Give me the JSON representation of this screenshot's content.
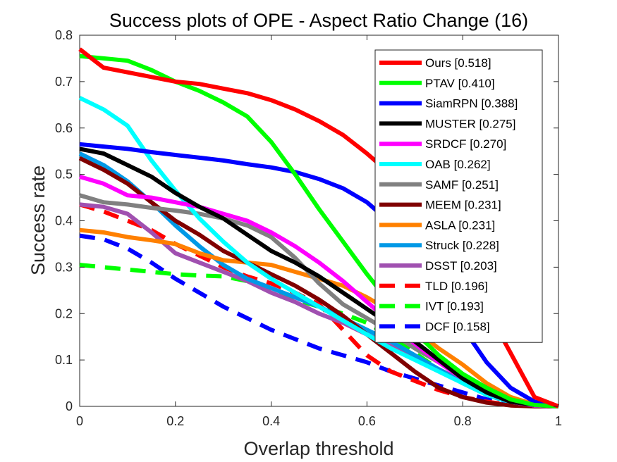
{
  "chart_data": {
    "type": "line",
    "title": "Success plots of OPE - Aspect Ratio Change (16)",
    "xlabel": "Overlap threshold",
    "ylabel": "Success rate",
    "xlim": [
      0,
      1
    ],
    "ylim": [
      0,
      0.8
    ],
    "xticks": [
      "0",
      "0.2",
      "0.4",
      "0.6",
      "0.8",
      "1"
    ],
    "yticks": [
      "0",
      "0.1",
      "0.2",
      "0.3",
      "0.4",
      "0.5",
      "0.6",
      "0.7",
      "0.8"
    ],
    "grid": false,
    "legend_position": "top-right",
    "series": [
      {
        "name": "Ours [0.518]",
        "color": "#ff0000",
        "dashed": false,
        "x": [
          0,
          0.05,
          0.1,
          0.15,
          0.2,
          0.25,
          0.3,
          0.35,
          0.4,
          0.45,
          0.5,
          0.55,
          0.6,
          0.65,
          0.7,
          0.75,
          0.8,
          0.85,
          0.9,
          0.95,
          1
        ],
        "y": [
          0.77,
          0.73,
          0.72,
          0.71,
          0.7,
          0.695,
          0.685,
          0.675,
          0.66,
          0.64,
          0.615,
          0.585,
          0.545,
          0.5,
          0.44,
          0.38,
          0.31,
          0.21,
          0.115,
          0.02,
          0
        ]
      },
      {
        "name": "PTAV [0.410]",
        "color": "#00ff00",
        "dashed": false,
        "x": [
          0,
          0.05,
          0.1,
          0.15,
          0.2,
          0.25,
          0.3,
          0.35,
          0.4,
          0.45,
          0.5,
          0.55,
          0.6,
          0.65,
          0.7,
          0.75,
          0.8,
          0.85,
          0.9,
          0.95,
          1
        ],
        "y": [
          0.755,
          0.75,
          0.745,
          0.725,
          0.7,
          0.68,
          0.655,
          0.625,
          0.57,
          0.5,
          0.425,
          0.355,
          0.285,
          0.22,
          0.16,
          0.11,
          0.07,
          0.04,
          0.015,
          0.003,
          0
        ]
      },
      {
        "name": "SiamRPN [0.388]",
        "color": "#0000ff",
        "dashed": false,
        "x": [
          0,
          0.05,
          0.1,
          0.15,
          0.2,
          0.25,
          0.3,
          0.35,
          0.4,
          0.45,
          0.5,
          0.55,
          0.6,
          0.65,
          0.7,
          0.75,
          0.8,
          0.85,
          0.9,
          0.95,
          1
        ],
        "y": [
          0.565,
          0.56,
          0.555,
          0.548,
          0.542,
          0.536,
          0.53,
          0.522,
          0.515,
          0.505,
          0.49,
          0.47,
          0.44,
          0.395,
          0.34,
          0.265,
          0.17,
          0.095,
          0.04,
          0.01,
          0
        ]
      },
      {
        "name": "MUSTER [0.275]",
        "color": "#000000",
        "dashed": false,
        "x": [
          0,
          0.05,
          0.1,
          0.15,
          0.2,
          0.25,
          0.3,
          0.35,
          0.4,
          0.45,
          0.5,
          0.55,
          0.6,
          0.65,
          0.7,
          0.75,
          0.8,
          0.85,
          0.9,
          0.95,
          1
        ],
        "y": [
          0.555,
          0.545,
          0.52,
          0.495,
          0.46,
          0.43,
          0.405,
          0.37,
          0.335,
          0.31,
          0.28,
          0.245,
          0.21,
          0.175,
          0.14,
          0.1,
          0.06,
          0.03,
          0.01,
          0.003,
          0
        ]
      },
      {
        "name": "SRDCF [0.270]",
        "color": "#ff00ff",
        "dashed": false,
        "x": [
          0,
          0.05,
          0.1,
          0.15,
          0.2,
          0.25,
          0.3,
          0.35,
          0.4,
          0.45,
          0.5,
          0.55,
          0.6,
          0.65,
          0.7,
          0.75,
          0.8,
          0.85,
          0.9,
          0.95,
          1
        ],
        "y": [
          0.495,
          0.48,
          0.455,
          0.45,
          0.44,
          0.43,
          0.415,
          0.4,
          0.375,
          0.345,
          0.31,
          0.27,
          0.225,
          0.18,
          0.135,
          0.095,
          0.06,
          0.03,
          0.01,
          0.002,
          0
        ]
      },
      {
        "name": "OAB [0.262]",
        "color": "#00ffff",
        "dashed": false,
        "x": [
          0,
          0.05,
          0.1,
          0.15,
          0.2,
          0.25,
          0.3,
          0.35,
          0.4,
          0.45,
          0.5,
          0.55,
          0.6,
          0.65,
          0.7,
          0.75,
          0.8,
          0.85,
          0.9,
          0.95,
          1
        ],
        "y": [
          0.665,
          0.64,
          0.605,
          0.53,
          0.465,
          0.405,
          0.355,
          0.31,
          0.275,
          0.245,
          0.215,
          0.185,
          0.155,
          0.125,
          0.1,
          0.075,
          0.05,
          0.025,
          0.01,
          0.002,
          0
        ]
      },
      {
        "name": "SAMF [0.251]",
        "color": "#808080",
        "dashed": false,
        "x": [
          0,
          0.05,
          0.1,
          0.15,
          0.2,
          0.25,
          0.3,
          0.35,
          0.4,
          0.45,
          0.5,
          0.55,
          0.6,
          0.65,
          0.7,
          0.75,
          0.8,
          0.85,
          0.9,
          0.95,
          1
        ],
        "y": [
          0.455,
          0.44,
          0.435,
          0.428,
          0.422,
          0.415,
          0.405,
          0.39,
          0.365,
          0.32,
          0.265,
          0.22,
          0.19,
          0.16,
          0.125,
          0.095,
          0.065,
          0.035,
          0.012,
          0.003,
          0
        ]
      },
      {
        "name": "MEEM [0.231]",
        "color": "#800000",
        "dashed": false,
        "x": [
          0,
          0.05,
          0.1,
          0.15,
          0.2,
          0.25,
          0.3,
          0.35,
          0.4,
          0.45,
          0.5,
          0.55,
          0.6,
          0.65,
          0.7,
          0.75,
          0.8,
          0.85,
          0.9,
          0.95,
          1
        ],
        "y": [
          0.535,
          0.51,
          0.48,
          0.44,
          0.4,
          0.37,
          0.335,
          0.31,
          0.285,
          0.26,
          0.23,
          0.195,
          0.155,
          0.115,
          0.075,
          0.04,
          0.02,
          0.008,
          0.002,
          0,
          0
        ]
      },
      {
        "name": "ASLA [0.231]",
        "color": "#ff8000",
        "dashed": false,
        "x": [
          0,
          0.05,
          0.1,
          0.15,
          0.2,
          0.25,
          0.3,
          0.35,
          0.4,
          0.45,
          0.5,
          0.55,
          0.6,
          0.65,
          0.7,
          0.75,
          0.8,
          0.85,
          0.9,
          0.95,
          1
        ],
        "y": [
          0.38,
          0.375,
          0.365,
          0.358,
          0.35,
          0.33,
          0.315,
          0.31,
          0.305,
          0.29,
          0.275,
          0.26,
          0.235,
          0.205,
          0.165,
          0.125,
          0.09,
          0.05,
          0.02,
          0.004,
          0
        ]
      },
      {
        "name": "Struck [0.228]",
        "color": "#0099e6",
        "dashed": false,
        "x": [
          0,
          0.05,
          0.1,
          0.15,
          0.2,
          0.25,
          0.3,
          0.35,
          0.4,
          0.45,
          0.5,
          0.55,
          0.6,
          0.65,
          0.7,
          0.75,
          0.8,
          0.85,
          0.9,
          0.95,
          1
        ],
        "y": [
          0.545,
          0.52,
          0.485,
          0.44,
          0.39,
          0.345,
          0.305,
          0.275,
          0.255,
          0.235,
          0.215,
          0.19,
          0.165,
          0.14,
          0.11,
          0.08,
          0.05,
          0.025,
          0.008,
          0.002,
          0
        ]
      },
      {
        "name": "DSST [0.203]",
        "color": "#a050b0",
        "dashed": false,
        "x": [
          0,
          0.05,
          0.1,
          0.15,
          0.2,
          0.25,
          0.3,
          0.35,
          0.4,
          0.45,
          0.5,
          0.55,
          0.6,
          0.65,
          0.7,
          0.75,
          0.8,
          0.85,
          0.9,
          0.95,
          1
        ],
        "y": [
          0.435,
          0.43,
          0.415,
          0.375,
          0.33,
          0.31,
          0.29,
          0.27,
          0.245,
          0.225,
          0.2,
          0.18,
          0.155,
          0.13,
          0.105,
          0.08,
          0.055,
          0.03,
          0.01,
          0.002,
          0
        ]
      },
      {
        "name": "TLD [0.196]",
        "color": "#ff0000",
        "dashed": true,
        "x": [
          0,
          0.05,
          0.1,
          0.15,
          0.2,
          0.25,
          0.3,
          0.35,
          0.4,
          0.45,
          0.5,
          0.55,
          0.6,
          0.65,
          0.7,
          0.75,
          0.8,
          0.85,
          0.9,
          0.95,
          1
        ],
        "y": [
          0.435,
          0.42,
          0.4,
          0.38,
          0.35,
          0.325,
          0.3,
          0.28,
          0.265,
          0.245,
          0.22,
          0.165,
          0.11,
          0.075,
          0.055,
          0.035,
          0.02,
          0.01,
          0.003,
          0,
          0
        ]
      },
      {
        "name": "IVT [0.193]",
        "color": "#00ff00",
        "dashed": true,
        "x": [
          0,
          0.05,
          0.1,
          0.15,
          0.2,
          0.25,
          0.3,
          0.35,
          0.4,
          0.45,
          0.5,
          0.55,
          0.6,
          0.65,
          0.7,
          0.75,
          0.8,
          0.85,
          0.9,
          0.95,
          1
        ],
        "y": [
          0.305,
          0.3,
          0.295,
          0.29,
          0.285,
          0.282,
          0.28,
          0.27,
          0.255,
          0.23,
          0.215,
          0.2,
          0.18,
          0.15,
          0.115,
          0.08,
          0.05,
          0.025,
          0.01,
          0.003,
          0
        ]
      },
      {
        "name": "DCF [0.158]",
        "color": "#0000ff",
        "dashed": true,
        "x": [
          0,
          0.05,
          0.1,
          0.15,
          0.2,
          0.25,
          0.3,
          0.35,
          0.4,
          0.45,
          0.5,
          0.55,
          0.6,
          0.65,
          0.7,
          0.75,
          0.8,
          0.85,
          0.9,
          0.95,
          1
        ],
        "y": [
          0.368,
          0.36,
          0.34,
          0.31,
          0.275,
          0.245,
          0.215,
          0.19,
          0.165,
          0.145,
          0.125,
          0.11,
          0.095,
          0.075,
          0.06,
          0.045,
          0.03,
          0.015,
          0.005,
          0.001,
          0
        ]
      }
    ]
  }
}
